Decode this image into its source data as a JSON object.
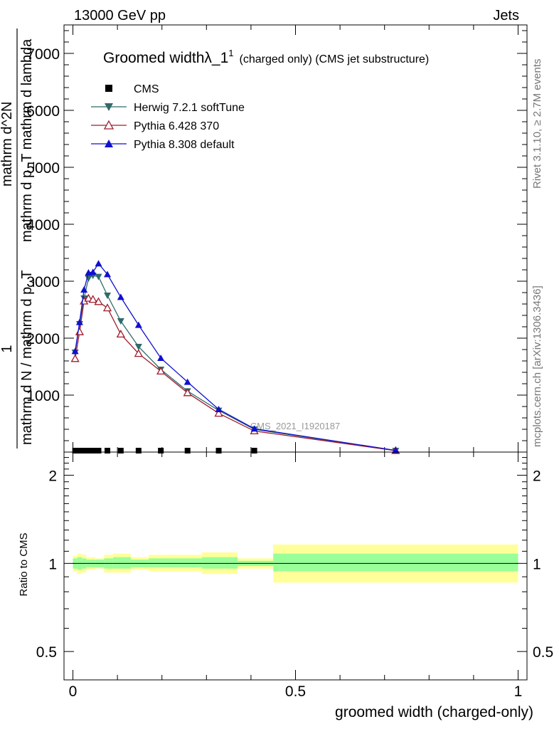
{
  "header": {
    "left_title": "13000 GeV pp",
    "right_title": "Jets"
  },
  "side_labels": {
    "rivet": "Rivet 3.1.10, ≥ 2.7M events",
    "mcplots": "mcplots.cern.ch [arXiv:1306.3436]"
  },
  "chart_data": [
    {
      "type": "line",
      "title": "Groomed width",
      "title_symbol": "λ_1",
      "title_sup": "1",
      "title_suffix": "(charged only) (CMS jet substructure)",
      "watermark": "CMS_2021_I1920187",
      "ylabel_num": "1",
      "ylabel_den": "mathrm d N / mathrm d p_T",
      "ylabel_rhs_num": "mathrm d^2N",
      "ylabel_rhs_den": "mathrm d p_T mathrm d lambda",
      "xlim": [
        -0.02,
        1.02
      ],
      "ylim": [
        0,
        7500
      ],
      "ytick_values": [
        1000,
        2000,
        3000,
        4000,
        5000,
        6000,
        7000
      ],
      "ytick_labels": [
        "1000",
        "2000",
        "3000",
        "4000",
        "5000",
        "6000",
        "7000"
      ],
      "legend_position": "top-left",
      "series": [
        {
          "name": "CMS",
          "marker": "square",
          "color": "#000000",
          "x": [
            0.005,
            0.015,
            0.025,
            0.035,
            0.045,
            0.0575,
            0.0775,
            0.1075,
            0.1475,
            0.1975,
            0.2575,
            0.3275,
            0.4075
          ],
          "y": [
            0,
            0,
            0,
            0,
            0,
            0,
            0,
            0,
            0,
            0,
            0,
            0,
            0
          ]
        },
        {
          "name": "Herwig 7.2.1 softTune",
          "marker": "triangle-down",
          "color": "#2f6b6b",
          "x": [
            0.005,
            0.015,
            0.025,
            0.035,
            0.045,
            0.0575,
            0.0775,
            0.1075,
            0.1475,
            0.1975,
            0.2575,
            0.3275,
            0.4075,
            0.725
          ],
          "y": [
            1750,
            2250,
            2700,
            3050,
            3100,
            3080,
            2750,
            2300,
            1850,
            1450,
            1070,
            730,
            400,
            25
          ]
        },
        {
          "name": "Pythia 6.428 370",
          "marker": "triangle-open",
          "color": "#a01c2c",
          "x": [
            0.005,
            0.015,
            0.025,
            0.035,
            0.045,
            0.0575,
            0.0775,
            0.1075,
            0.1475,
            0.1975,
            0.2575,
            0.3275,
            0.4075,
            0.725
          ],
          "y": [
            1640,
            2110,
            2650,
            2700,
            2680,
            2640,
            2530,
            2070,
            1730,
            1420,
            1040,
            680,
            370,
            25
          ]
        },
        {
          "name": "Pythia 8.308 default",
          "marker": "triangle-up",
          "color": "#1010d0",
          "x": [
            0.005,
            0.015,
            0.025,
            0.035,
            0.045,
            0.0575,
            0.0775,
            0.1075,
            0.1475,
            0.1975,
            0.2575,
            0.3275,
            0.4075,
            0.725
          ],
          "y": [
            1770,
            2280,
            2850,
            3150,
            3160,
            3310,
            3120,
            2720,
            2230,
            1650,
            1230,
            750,
            410,
            30
          ]
        }
      ]
    },
    {
      "type": "area",
      "ylabel": "Ratio to CMS",
      "xlabel": "groomed width (charged-only)",
      "xlim": [
        -0.02,
        1.02
      ],
      "ylim": [
        0.4,
        2.4
      ],
      "ytick_values": [
        0.5,
        1,
        2
      ],
      "ytick_labels": [
        "0.5",
        "1",
        "2"
      ],
      "xtick_values": [
        0,
        0.5,
        1
      ],
      "xtick_labels": [
        "0",
        "0.5",
        "1"
      ],
      "reference_line": 1,
      "band_colors": {
        "outer": "#ffff99",
        "inner": "#99ff99",
        "reference": "#000000"
      },
      "bins": [
        {
          "lo": 0.0,
          "hi": 0.01,
          "inner": [
            0.96,
            1.04
          ],
          "outer": [
            0.94,
            1.06
          ]
        },
        {
          "lo": 0.01,
          "hi": 0.02,
          "inner": [
            0.95,
            1.05
          ],
          "outer": [
            0.92,
            1.08
          ]
        },
        {
          "lo": 0.02,
          "hi": 0.03,
          "inner": [
            0.96,
            1.04
          ],
          "outer": [
            0.93,
            1.07
          ]
        },
        {
          "lo": 0.03,
          "hi": 0.04,
          "inner": [
            0.97,
            1.03
          ],
          "outer": [
            0.95,
            1.05
          ]
        },
        {
          "lo": 0.04,
          "hi": 0.05,
          "inner": [
            0.97,
            1.03
          ],
          "outer": [
            0.95,
            1.05
          ]
        },
        {
          "lo": 0.05,
          "hi": 0.07,
          "inner": [
            0.97,
            1.03
          ],
          "outer": [
            0.96,
            1.04
          ]
        },
        {
          "lo": 0.07,
          "hi": 0.09,
          "inner": [
            0.96,
            1.04
          ],
          "outer": [
            0.93,
            1.07
          ]
        },
        {
          "lo": 0.09,
          "hi": 0.13,
          "inner": [
            0.96,
            1.05
          ],
          "outer": [
            0.93,
            1.08
          ]
        },
        {
          "lo": 0.13,
          "hi": 0.17,
          "inner": [
            0.97,
            1.03
          ],
          "outer": [
            0.95,
            1.05
          ]
        },
        {
          "lo": 0.17,
          "hi": 0.23,
          "inner": [
            0.97,
            1.04
          ],
          "outer": [
            0.94,
            1.07
          ]
        },
        {
          "lo": 0.23,
          "hi": 0.29,
          "inner": [
            0.97,
            1.04
          ],
          "outer": [
            0.94,
            1.07
          ]
        },
        {
          "lo": 0.29,
          "hi": 0.37,
          "inner": [
            0.96,
            1.05
          ],
          "outer": [
            0.92,
            1.09
          ]
        },
        {
          "lo": 0.37,
          "hi": 0.45,
          "inner": [
            0.98,
            1.02
          ],
          "outer": [
            0.96,
            1.04
          ]
        },
        {
          "lo": 0.45,
          "hi": 1.0,
          "inner": [
            0.94,
            1.08
          ],
          "outer": [
            0.86,
            1.16
          ]
        }
      ]
    }
  ]
}
